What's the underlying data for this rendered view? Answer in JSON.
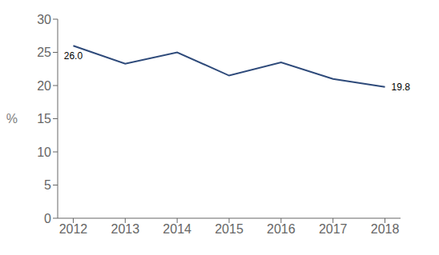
{
  "chart_data": {
    "type": "line",
    "x": [
      2012,
      2013,
      2014,
      2015,
      2016,
      2017,
      2018
    ],
    "values": [
      26.0,
      23.3,
      25.0,
      21.5,
      23.5,
      21.0,
      19.8
    ],
    "color": "#2E4A7A",
    "ylabel": "%",
    "xlim": [
      2011.7,
      2018.3
    ],
    "xticks": [
      2012,
      2013,
      2014,
      2015,
      2016,
      2017,
      2018
    ],
    "ylim": [
      0,
      30
    ],
    "yticks": [
      0,
      5,
      10,
      15,
      20,
      25,
      30
    ],
    "annotations": [
      {
        "text": "26.0",
        "x": 2012,
        "y": 26.0
      },
      {
        "text": "19.8",
        "x": 2018,
        "y": 19.8
      }
    ],
    "grid": false
  }
}
